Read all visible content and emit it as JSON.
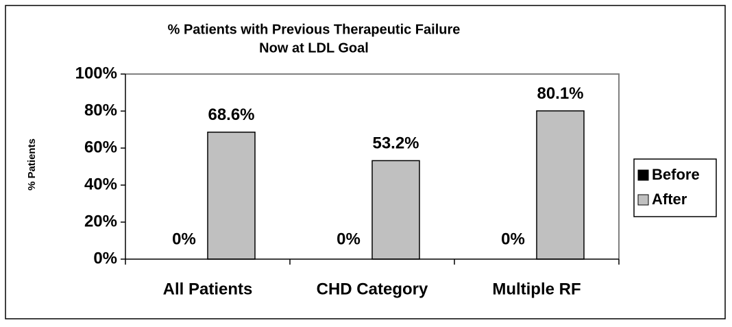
{
  "chart_data": {
    "type": "bar",
    "title": [
      "% Patients with Previous Therapeutic Failure",
      "Now at LDL Goal"
    ],
    "y_label": "% Patients",
    "categories": [
      "All Patients",
      "CHD Category",
      "Multiple RF"
    ],
    "series": [
      {
        "name": "Before",
        "color": "#000000",
        "values": [
          0,
          0,
          0
        ],
        "value_labels": [
          "0%",
          "0%",
          "0%"
        ]
      },
      {
        "name": "After",
        "color": "#c0c0c0",
        "values": [
          68.6,
          53.2,
          80.1
        ],
        "value_labels": [
          "68.6%",
          "53.2%",
          "80.1%"
        ]
      }
    ],
    "ylim": [
      0,
      100
    ],
    "yticks": [
      {
        "value": 0,
        "label": "0%"
      },
      {
        "value": 20,
        "label": "20%"
      },
      {
        "value": 40,
        "label": "40%"
      },
      {
        "value": 60,
        "label": "60%"
      },
      {
        "value": 80,
        "label": "80%"
      },
      {
        "value": 100,
        "label": "100%"
      }
    ],
    "legend": "right"
  }
}
